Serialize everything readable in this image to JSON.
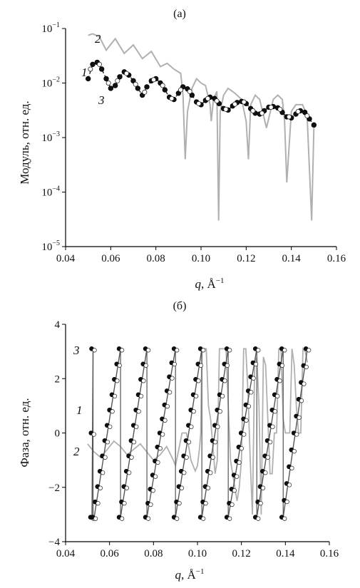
{
  "figure": {
    "panel_a_label": "(а)",
    "panel_b_label": "(б)"
  },
  "chart_data": [
    {
      "type": "line",
      "panel": "(а)",
      "xlabel_italic": "q",
      "xlabel_unit": ", Å",
      "xlabel_exp": "−1",
      "ylabel": "Модуль, отн. ед.",
      "xlim": [
        0.04,
        0.16
      ],
      "ylim": [
        -5,
        -1
      ],
      "yscale": "log",
      "x_ticks": [
        "0.04",
        "0.06",
        "0.08",
        "0.10",
        "0.12",
        "0.14",
        "0.16"
      ],
      "y_ticks": [
        {
          "base": "10",
          "exp": "−1"
        },
        {
          "base": "10",
          "exp": "−2"
        },
        {
          "base": "10",
          "exp": "−3"
        },
        {
          "base": "10",
          "exp": "−4"
        },
        {
          "base": "10",
          "exp": "−5"
        }
      ],
      "curve_labels": [
        "1",
        "2",
        "3"
      ],
      "grid": false,
      "series": [
        {
          "style": "light-gray-line",
          "color": "#b0b0b0",
          "x": [
            0.05,
            0.052,
            0.055,
            0.058,
            0.062,
            0.066,
            0.07,
            0.074,
            0.078,
            0.082,
            0.085,
            0.088,
            0.091,
            0.092,
            0.093,
            0.094,
            0.096,
            0.098,
            0.1,
            0.102,
            0.104,
            0.1045,
            0.1055,
            0.107,
            0.1078,
            0.1085,
            0.11,
            0.112,
            0.115,
            0.118,
            0.12,
            0.121,
            0.122,
            0.124,
            0.126,
            0.129,
            0.132,
            0.134,
            0.136,
            0.137,
            0.138,
            0.14,
            0.142,
            0.145,
            0.147,
            0.149,
            0.15
          ],
          "y": [
            0.075,
            0.08,
            0.07,
            0.04,
            0.065,
            0.035,
            0.05,
            0.028,
            0.038,
            0.02,
            0.023,
            0.018,
            0.015,
            0.006,
            0.0004,
            0.003,
            0.008,
            0.012,
            0.01,
            0.009,
            0.004,
            0.002,
            0.005,
            0.007,
            3e-05,
            0.003,
            0.006,
            0.008,
            0.0065,
            0.005,
            0.002,
            0.0004,
            0.004,
            0.006,
            0.005,
            0.0015,
            0.005,
            0.006,
            0.005,
            0.002,
            0.00015,
            0.003,
            0.004,
            0.004,
            0.0025,
            3e-05,
            0.0015
          ]
        },
        {
          "style": "filled-dots-dashed",
          "color": "#111111",
          "x": [
            0.05,
            0.052,
            0.054,
            0.056,
            0.058,
            0.06,
            0.062,
            0.064,
            0.066,
            0.068,
            0.07,
            0.072,
            0.074,
            0.076,
            0.078,
            0.08,
            0.082,
            0.084,
            0.086,
            0.088,
            0.09,
            0.092,
            0.094,
            0.096,
            0.098,
            0.1,
            0.102,
            0.104,
            0.106,
            0.108,
            0.11,
            0.112,
            0.114,
            0.116,
            0.118,
            0.12,
            0.122,
            0.124,
            0.126,
            0.128,
            0.13,
            0.132,
            0.134,
            0.136,
            0.138,
            0.14,
            0.142,
            0.144,
            0.146,
            0.148,
            0.15
          ],
          "y": [
            0.012,
            0.022,
            0.024,
            0.018,
            0.012,
            0.008,
            0.009,
            0.013,
            0.016,
            0.014,
            0.011,
            0.008,
            0.006,
            0.0085,
            0.011,
            0.012,
            0.01,
            0.0075,
            0.0055,
            0.005,
            0.0065,
            0.0085,
            0.0078,
            0.006,
            0.0045,
            0.004,
            0.0048,
            0.0055,
            0.0052,
            0.0042,
            0.0034,
            0.0032,
            0.0038,
            0.0044,
            0.0046,
            0.0042,
            0.0034,
            0.0028,
            0.0027,
            0.0031,
            0.0036,
            0.0037,
            0.0035,
            0.0029,
            0.0024,
            0.0023,
            0.0027,
            0.0031,
            0.0029,
            0.0022,
            0.0017
          ]
        },
        {
          "style": "open-dots",
          "color": "#ffffff",
          "x": [
            0.051,
            0.055,
            0.059,
            0.063,
            0.067,
            0.071,
            0.075,
            0.079,
            0.083,
            0.087,
            0.091,
            0.095,
            0.099,
            0.103,
            0.107,
            0.111,
            0.115,
            0.119,
            0.123,
            0.127,
            0.131,
            0.135,
            0.139,
            0.143,
            0.147
          ],
          "y": [
            0.018,
            0.022,
            0.01,
            0.011,
            0.015,
            0.0095,
            0.0068,
            0.0115,
            0.009,
            0.0052,
            0.0075,
            0.007,
            0.0042,
            0.0052,
            0.0047,
            0.0033,
            0.0041,
            0.0045,
            0.0031,
            0.0028,
            0.0036,
            0.0033,
            0.0024,
            0.003,
            0.0025
          ]
        }
      ]
    },
    {
      "type": "line",
      "panel": "(б)",
      "xlabel_italic": "q",
      "xlabel_unit": ", Å",
      "xlabel_exp": "−1",
      "ylabel": "Фаза, отн. ед.",
      "xlim": [
        0.04,
        0.16
      ],
      "ylim": [
        -4,
        4
      ],
      "x_ticks": [
        "0.04",
        "0.06",
        "0.08",
        "0.10",
        "0.12",
        "0.14",
        "0.16"
      ],
      "y_ticks": [
        "4",
        "2",
        "0",
        "−2",
        "−4"
      ],
      "curve_labels": [
        "3",
        "1",
        "2"
      ],
      "grid": false,
      "ramps": [
        [
          0.052,
          0.0525
        ],
        [
          0.053,
          0.065
        ],
        [
          0.065,
          0.077
        ],
        [
          0.077,
          0.09
        ],
        [
          0.09,
          0.102
        ],
        [
          0.102,
          0.114
        ],
        [
          0.114,
          0.127
        ],
        [
          0.127,
          0.139
        ],
        [
          0.139,
          0.15
        ]
      ],
      "ramp_range": [
        -3.1,
        3.1
      ],
      "series": [
        {
          "style": "light-gray-line",
          "color": "#b0b0b0",
          "x": [
            0.05,
            0.053,
            0.056,
            0.059,
            0.062,
            0.065,
            0.068,
            0.071,
            0.074,
            0.077,
            0.08,
            0.083,
            0.086,
            0.089,
            0.09,
            0.091,
            0.093,
            0.094,
            0.095,
            0.097,
            0.099,
            0.1,
            0.101,
            0.1015,
            0.102,
            0.104,
            0.104,
            0.105,
            0.106,
            0.107,
            0.108,
            0.109,
            0.11,
            0.112,
            0.113,
            0.114,
            0.115,
            0.117,
            0.118,
            0.119,
            0.12,
            0.121,
            0.122,
            0.123,
            0.124,
            0.125,
            0.126,
            0.127,
            0.128,
            0.129,
            0.13,
            0.131,
            0.132,
            0.133,
            0.134,
            0.135,
            0.136,
            0.137,
            0.138,
            0.139,
            0.14,
            0.141,
            0.142,
            0.143,
            0.144,
            0.145,
            0.146,
            0.147,
            0.148,
            0.149,
            0.15
          ],
          "y": [
            -0.4,
            -0.7,
            -0.9,
            -0.6,
            -0.3,
            -0.5,
            -0.8,
            -0.6,
            -0.4,
            -0.7,
            -1.0,
            -0.8,
            -0.5,
            -1.0,
            -1.2,
            -0.8,
            0.0,
            0.0,
            0.0,
            -1.0,
            -1.4,
            -1.2,
            -0.5,
            0.0,
            3.1,
            3.1,
            3.1,
            1.0,
            0.5,
            -0.5,
            -1.5,
            -1.0,
            3.1,
            3.1,
            3.1,
            1.0,
            -1.0,
            -2.0,
            -2.5,
            -2.0,
            -1.0,
            3.1,
            3.1,
            1.5,
            -1.0,
            -3.0,
            2.5,
            2.8,
            1.0,
            -3.0,
            2.8,
            2.5,
            0.5,
            -1.5,
            -1.5,
            0.0,
            0.0,
            3.1,
            3.1,
            0.5,
            0.0,
            0.0,
            0.0,
            3.1,
            2.5,
            1.0,
            0.0,
            0.0,
            3.1,
            3.0,
            2.6
          ]
        }
      ]
    }
  ]
}
